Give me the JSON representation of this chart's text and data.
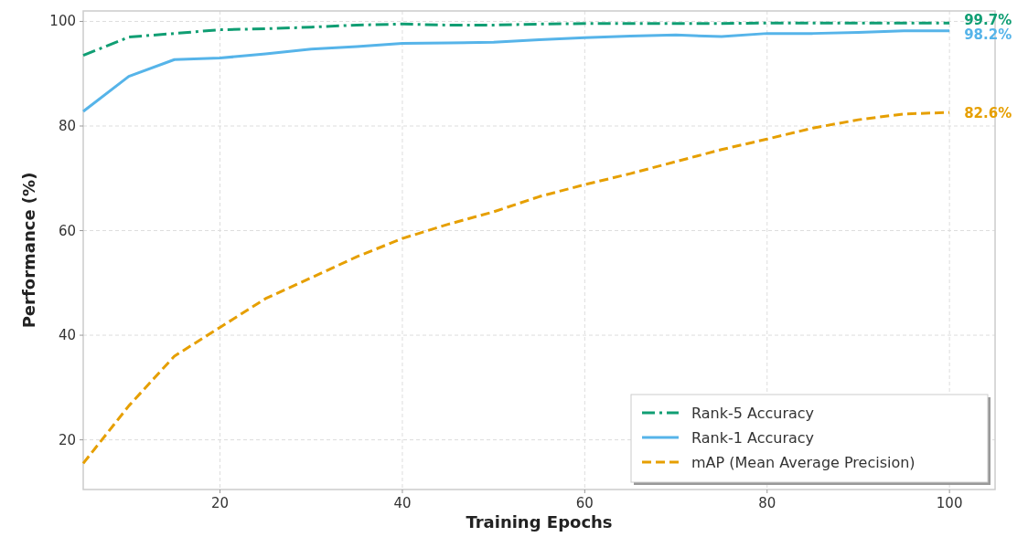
{
  "chart_data": {
    "type": "line",
    "xlabel": "Training Epochs",
    "ylabel": "Performance (%)",
    "x": [
      5,
      10,
      15,
      20,
      25,
      30,
      35,
      40,
      45,
      50,
      55,
      60,
      65,
      70,
      75,
      80,
      85,
      90,
      95,
      100
    ],
    "series": [
      {
        "name": "Rank-5 Accuracy",
        "color": "#109e73",
        "line_style": "dashdot",
        "values": [
          93.5,
          97,
          97.7,
          98.4,
          98.6,
          98.9,
          99.3,
          99.5,
          99.3,
          99.3,
          99.5,
          99.6,
          99.6,
          99.6,
          99.6,
          99.7,
          99.7,
          99.7,
          99.7,
          99.7
        ]
      },
      {
        "name": "Rank-1 Accuracy",
        "color": "#56b4e9",
        "line_style": "solid",
        "values": [
          82.8,
          89.5,
          92.7,
          93.0,
          93.8,
          94.7,
          95.2,
          95.8,
          95.9,
          96.0,
          96.5,
          96.9,
          97.2,
          97.4,
          97.1,
          97.7,
          97.7,
          97.9,
          98.2,
          98.2
        ]
      },
      {
        "name": "mAP (Mean Average Precision)",
        "color": "#e69f00",
        "line_style": "dashed",
        "values": [
          15.5,
          26.5,
          36,
          41.5,
          47,
          51,
          55,
          58.5,
          61.2,
          63.6,
          66.5,
          68.8,
          70.9,
          73.2,
          75.5,
          77.5,
          79.6,
          81.2,
          82.3,
          82.6
        ]
      }
    ],
    "annotations": [
      "99.7%",
      "98.2%",
      "82.6%"
    ],
    "xlim": [
      5,
      105
    ],
    "xticks": [
      20,
      40,
      60,
      80,
      100
    ],
    "ylim": [
      10.5,
      102
    ],
    "yticks": [
      20,
      40,
      60,
      80,
      100
    ],
    "grid": true,
    "legend": "bottom right",
    "marker": "none"
  }
}
